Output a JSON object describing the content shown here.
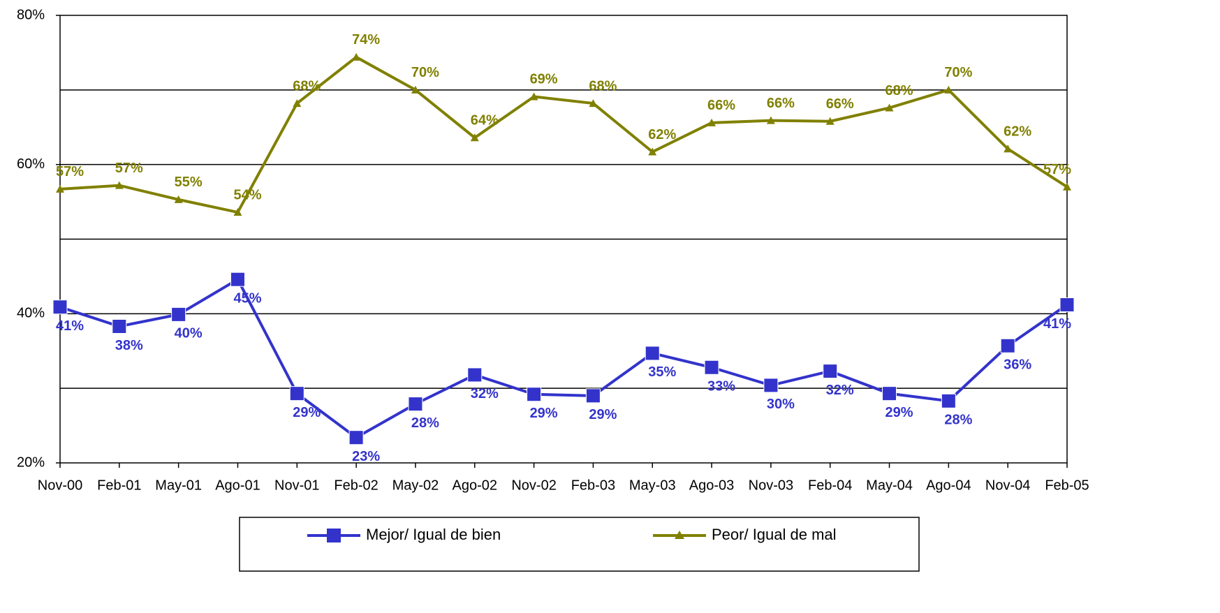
{
  "chart_data": {
    "type": "line",
    "categories": [
      "Nov-00",
      "Feb-01",
      "May-01",
      "Ago-01",
      "Nov-01",
      "Feb-02",
      "May-02",
      "Ago-02",
      "Nov-02",
      "Feb-03",
      "May-03",
      "Ago-03",
      "Nov-03",
      "Feb-04",
      "May-04",
      "Ago-04",
      "Nov-04",
      "Feb-05"
    ],
    "series": [
      {
        "name": "Mejor/ Igual de bien",
        "color": "#3333cc",
        "marker": "square",
        "values": [
          40.9,
          38.3,
          39.9,
          44.6,
          29.3,
          23.4,
          27.9,
          31.8,
          29.2,
          29.0,
          34.7,
          32.8,
          30.4,
          32.3,
          29.3,
          28.3,
          35.7,
          41.2
        ],
        "value_labels": [
          "41%",
          "38%",
          "40%",
          "45%",
          "29%",
          "23%",
          "28%",
          "32%",
          "29%",
          "29%",
          "35%",
          "33%",
          "30%",
          "32%",
          "29%",
          "28%",
          "36%",
          "41%"
        ]
      },
      {
        "name": "Peor/ Igual de mal",
        "color": "#808000",
        "marker": "triangle",
        "values": [
          56.7,
          57.2,
          55.3,
          53.6,
          68.2,
          74.4,
          70.0,
          63.6,
          69.1,
          68.2,
          61.7,
          65.6,
          65.9,
          65.8,
          67.6,
          70.0,
          62.1,
          57.0
        ],
        "value_labels": [
          "57%",
          "57%",
          "55%",
          "54%",
          "68%",
          "74%",
          "70%",
          "64%",
          "69%",
          "68%",
          "62%",
          "66%",
          "66%",
          "66%",
          "68%",
          "70%",
          "62%",
          "57%"
        ]
      }
    ],
    "ylim": [
      20,
      80
    ],
    "yticks": [
      {
        "value": 20,
        "label": "20%"
      },
      {
        "value": 40,
        "label": "40%"
      },
      {
        "value": 60,
        "label": "60%"
      },
      {
        "value": 80,
        "label": "80%"
      }
    ],
    "grid_lines": [
      30,
      40,
      50,
      60,
      70
    ],
    "grid": true,
    "legend": "bottom"
  }
}
